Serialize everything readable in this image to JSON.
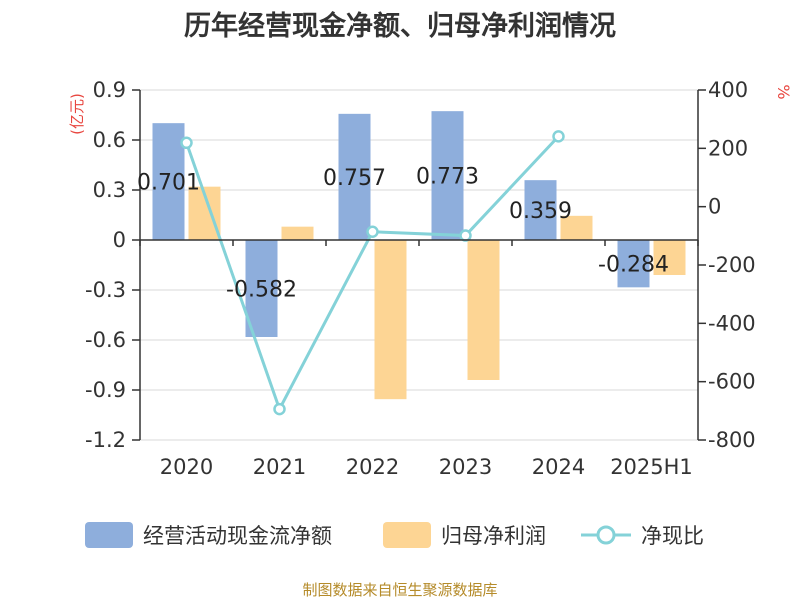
{
  "title": "历年经营现金净额、归母净利润情况",
  "source": "制图数据来自恒生聚源数据库",
  "colors": {
    "cash_flow": "#8eaedc",
    "net_profit": "#fdd594",
    "ratio_line": "#84d2d8",
    "axis": "#333333",
    "grid": "#d9d9d9",
    "unit": "#e8463f"
  },
  "chart_data": {
    "type": "bar",
    "categories": [
      "2020",
      "2021",
      "2022",
      "2023",
      "2024",
      "2025H1"
    ],
    "y_left": {
      "unit": "(亿元)",
      "range": [
        -1.2,
        0.9
      ],
      "ticks": [
        0.9,
        0.6,
        0.3,
        0,
        -0.3,
        -0.6,
        -0.9,
        -1.2
      ],
      "tick_labels": [
        "0.9",
        "0.6",
        "0.3",
        "0",
        "-0.3",
        "-0.6",
        "-0.9",
        "-1.2"
      ]
    },
    "y_right": {
      "unit": "%",
      "range": [
        -800,
        400
      ],
      "ticks": [
        400,
        200,
        0,
        -200,
        -400,
        -600,
        -800
      ],
      "tick_labels": [
        "400",
        "200",
        "0",
        "-200",
        "-400",
        "-600",
        "-800"
      ]
    },
    "series": [
      {
        "name": "经营活动现金流净额",
        "type": "bar",
        "axis": "left",
        "values": [
          0.701,
          -0.582,
          0.757,
          0.773,
          0.359,
          -0.284
        ],
        "labels": [
          "0.701",
          "-0.582",
          "0.757",
          "0.773",
          "0.359",
          "-0.284"
        ]
      },
      {
        "name": "归母净利润",
        "type": "bar",
        "axis": "left",
        "values": [
          0.32,
          0.08,
          -0.955,
          -0.84,
          0.145,
          -0.21
        ]
      },
      {
        "name": "净现比",
        "type": "line",
        "axis": "right",
        "values": [
          219,
          -694,
          -86,
          -99,
          241,
          null
        ]
      }
    ],
    "grid": true,
    "legend_position": "bottom"
  }
}
